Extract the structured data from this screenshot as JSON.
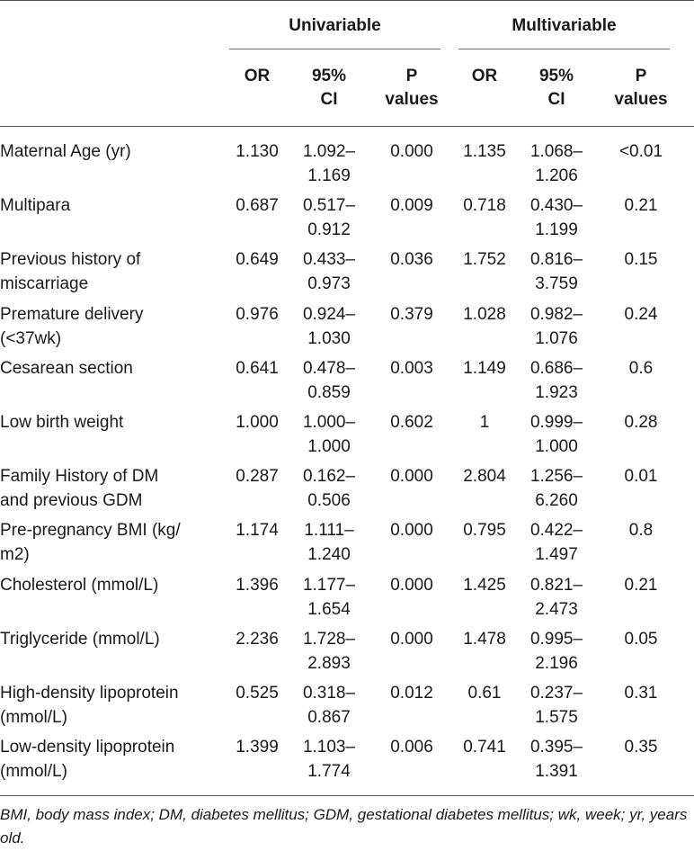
{
  "table": {
    "groups": [
      "Univariable",
      "Multivariable"
    ],
    "columns": [
      {
        "line1": "OR",
        "line2": ""
      },
      {
        "line1": "95%",
        "line2": "CI"
      },
      {
        "line1": "P",
        "line2": "values"
      },
      {
        "line1": "OR",
        "line2": ""
      },
      {
        "line1": "95%",
        "line2": "CI"
      },
      {
        "line1": "P",
        "line2": "values"
      }
    ],
    "rows": [
      {
        "label1": "Maternal Age (yr)",
        "label2": "",
        "uor": "1.130",
        "uci1": "1.092–",
        "uci2": "1.169",
        "up": "0.000",
        "mor": "1.135",
        "mci1": "1.068–",
        "mci2": "1.206",
        "mp": "<0.01"
      },
      {
        "label1": "Multipara",
        "label2": "",
        "uor": "0.687",
        "uci1": "0.517–",
        "uci2": "0.912",
        "up": "0.009",
        "mor": "0.718",
        "mci1": "0.430–",
        "mci2": "1.199",
        "mp": "0.21"
      },
      {
        "label1": "Previous history of",
        "label2": "miscarriage",
        "uor": "0.649",
        "uci1": "0.433–",
        "uci2": "0.973",
        "up": "0.036",
        "mor": "1.752",
        "mci1": "0.816–",
        "mci2": "3.759",
        "mp": "0.15"
      },
      {
        "label1": "Premature delivery",
        "label2": "(<37wk)",
        "uor": "0.976",
        "uci1": "0.924–",
        "uci2": "1.030",
        "up": "0.379",
        "mor": "1.028",
        "mci1": "0.982–",
        "mci2": "1.076",
        "mp": "0.24"
      },
      {
        "label1": "Cesarean section",
        "label2": "",
        "uor": "0.641",
        "uci1": "0.478–",
        "uci2": "0.859",
        "up": "0.003",
        "mor": "1.149",
        "mci1": "0.686–",
        "mci2": "1.923",
        "mp": "0.6"
      },
      {
        "label1": "Low birth weight",
        "label2": "",
        "uor": "1.000",
        "uci1": "1.000–",
        "uci2": "1.000",
        "up": "0.602",
        "mor": "1",
        "mci1": "0.999–",
        "mci2": "1.000",
        "mp": "0.28"
      },
      {
        "label1": "Family History of DM",
        "label2": "and previous GDM",
        "uor": "0.287",
        "uci1": "0.162–",
        "uci2": "0.506",
        "up": "0.000",
        "mor": "2.804",
        "mci1": "1.256–",
        "mci2": "6.260",
        "mp": "0.01"
      },
      {
        "label1": "Pre-pregnancy BMI (kg/",
        "label2": "m2)",
        "uor": "1.174",
        "uci1": "1.111–",
        "uci2": "1.240",
        "up": "0.000",
        "mor": "0.795",
        "mci1": "0.422–",
        "mci2": "1.497",
        "mp": "0.8"
      },
      {
        "label1": "Cholesterol (mmol/L)",
        "label2": "",
        "uor": "1.396",
        "uci1": "1.177–",
        "uci2": "1.654",
        "up": "0.000",
        "mor": "1.425",
        "mci1": "0.821–",
        "mci2": "2.473",
        "mp": "0.21"
      },
      {
        "label1": "Triglyceride (mmol/L)",
        "label2": "",
        "uor": "2.236",
        "uci1": "1.728–",
        "uci2": "2.893",
        "up": "0.000",
        "mor": "1.478",
        "mci1": "0.995–",
        "mci2": "2.196",
        "mp": "0.05"
      },
      {
        "label1": "High-density lipoprotein",
        "label2": "(mmol/L)",
        "uor": "0.525",
        "uci1": "0.318–",
        "uci2": "0.867",
        "up": "0.012",
        "mor": "0.61",
        "mci1": "0.237–",
        "mci2": "1.575",
        "mp": "0.31"
      },
      {
        "label1": "Low-density lipoprotein",
        "label2": "(mmol/L)",
        "uor": "1.399",
        "uci1": "1.103–",
        "uci2": "1.774",
        "up": "0.006",
        "mor": "0.741",
        "mci1": "0.395–",
        "mci2": "1.391",
        "mp": "0.35"
      }
    ],
    "footnote": "BMI, body mass index; DM, diabetes mellitus; GDM, gestational diabetes mellitus; wk, week; yr, years old."
  }
}
